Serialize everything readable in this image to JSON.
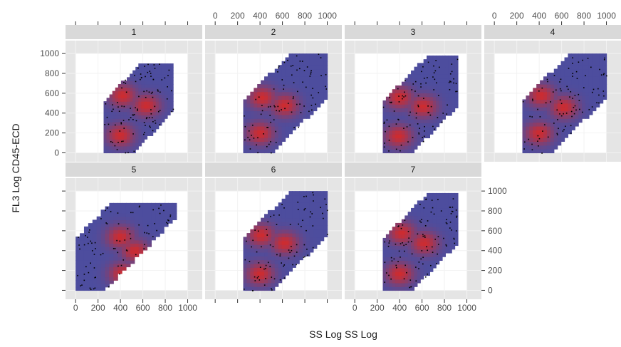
{
  "chart_data": {
    "type": "heatmap",
    "layout": "faceted-lattice",
    "xlabel": "SS Log SS Log",
    "ylabel": "FL3 Log CD45-ECD",
    "xlim": [
      -90,
      1130
    ],
    "ylim": [
      -90,
      1130
    ],
    "x_ticks": [
      0,
      200,
      400,
      600,
      800,
      1000
    ],
    "y_ticks": [
      0,
      200,
      400,
      600,
      800,
      1000
    ],
    "x_tick_labels": [
      "0",
      "200",
      "400",
      "600",
      "800",
      "1000"
    ],
    "y_tick_labels": [
      "0",
      "200",
      "400",
      "600",
      "800",
      "1000"
    ],
    "grid": true,
    "colors": {
      "panel_bg": "#e5e5e5",
      "strip_bg": "#d9d9d9",
      "low_density": "#4d4d9e",
      "high_density": "#d42a2a",
      "points": "#000000",
      "data_window": "#ffffff"
    },
    "facets": [
      {
        "label": "1",
        "x_range": [
          0,
          1000
        ],
        "y_range": [
          0,
          1000
        ],
        "extent": {
          "x": [
            250,
            870
          ],
          "y": [
            0,
            900
          ]
        },
        "modes": [
          {
            "x": 420,
            "y": 580
          },
          {
            "x": 630,
            "y": 480
          },
          {
            "x": 400,
            "y": 180
          }
        ]
      },
      {
        "label": "2",
        "x_range": [
          0,
          1000
        ],
        "y_range": [
          0,
          1000
        ],
        "extent": {
          "x": [
            250,
            1000
          ],
          "y": [
            0,
            1000
          ]
        },
        "modes": [
          {
            "x": 420,
            "y": 560
          },
          {
            "x": 620,
            "y": 480
          },
          {
            "x": 400,
            "y": 200
          }
        ]
      },
      {
        "label": "3",
        "x_range": [
          0,
          1000
        ],
        "y_range": [
          0,
          1000
        ],
        "extent": {
          "x": [
            250,
            920
          ],
          "y": [
            0,
            980
          ]
        },
        "modes": [
          {
            "x": 400,
            "y": 560
          },
          {
            "x": 610,
            "y": 470
          },
          {
            "x": 390,
            "y": 170
          }
        ]
      },
      {
        "label": "4",
        "x_range": [
          0,
          1000
        ],
        "y_range": [
          0,
          1000
        ],
        "extent": {
          "x": [
            250,
            1000
          ],
          "y": [
            0,
            1000
          ]
        },
        "modes": [
          {
            "x": 420,
            "y": 580
          },
          {
            "x": 620,
            "y": 460
          },
          {
            "x": 400,
            "y": 200
          }
        ]
      },
      {
        "label": "5",
        "x_range": [
          0,
          1000
        ],
        "y_range": [
          0,
          1000
        ],
        "extent": {
          "x": [
            0,
            900
          ],
          "y": [
            0,
            880
          ]
        },
        "modes": [
          {
            "x": 530,
            "y": 400
          },
          {
            "x": 400,
            "y": 540
          },
          {
            "x": 420,
            "y": 170
          }
        ]
      },
      {
        "label": "6",
        "x_range": [
          0,
          1000
        ],
        "y_range": [
          0,
          1000
        ],
        "extent": {
          "x": [
            250,
            1000
          ],
          "y": [
            0,
            1000
          ]
        },
        "modes": [
          {
            "x": 410,
            "y": 560
          },
          {
            "x": 620,
            "y": 480
          },
          {
            "x": 400,
            "y": 170
          }
        ]
      },
      {
        "label": "7",
        "x_range": [
          0,
          1000
        ],
        "y_range": [
          0,
          1000
        ],
        "extent": {
          "x": [
            250,
            920
          ],
          "y": [
            0,
            980
          ]
        },
        "modes": [
          {
            "x": 420,
            "y": 580
          },
          {
            "x": 620,
            "y": 480
          },
          {
            "x": 400,
            "y": 170
          }
        ]
      }
    ]
  }
}
